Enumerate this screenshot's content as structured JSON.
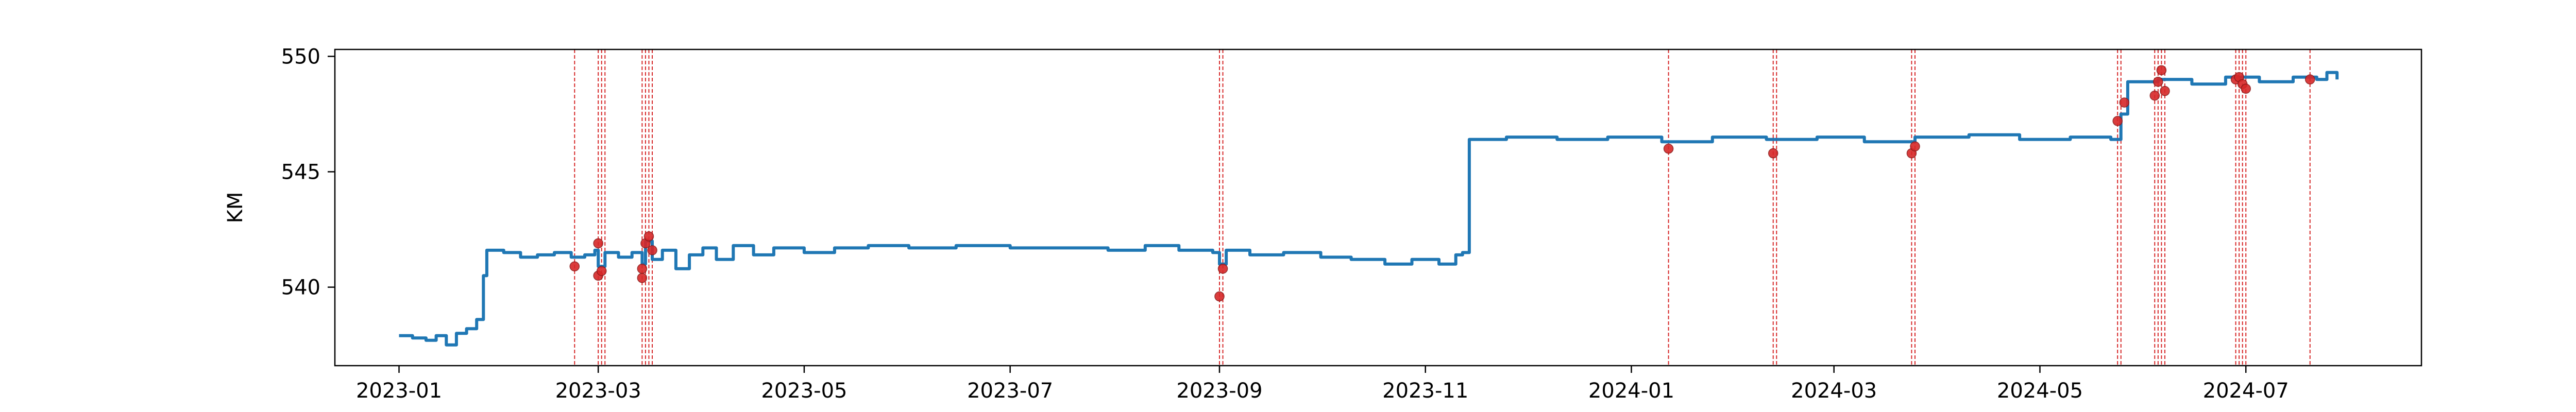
{
  "chart_data": {
    "type": "line",
    "title": "",
    "xlabel": "",
    "ylabel": "KM",
    "xlim": [
      "2022-12-13",
      "2024-08-22"
    ],
    "ylim": [
      536.6,
      550.3
    ],
    "x_ticks": [
      "2023-01-01",
      "2023-03-01",
      "2023-05-01",
      "2023-07-01",
      "2023-09-01",
      "2023-11-01",
      "2024-01-01",
      "2024-03-01",
      "2024-05-01",
      "2024-07-01"
    ],
    "x_tick_labels": [
      "2023-01",
      "2023-03",
      "2023-05",
      "2023-07",
      "2023-09",
      "2023-11",
      "2024-01",
      "2024-03",
      "2024-05",
      "2024-07"
    ],
    "y_ticks": [
      540,
      545,
      550
    ],
    "grid": false,
    "colors": {
      "line": "#1f77b4",
      "marker": "#d62728",
      "vline": "#d62728",
      "axes": "#000000"
    },
    "series": [
      {
        "points": [
          [
            "2023-01-01",
            537.9
          ],
          [
            "2023-01-05",
            537.8
          ],
          [
            "2023-01-09",
            537.7
          ],
          [
            "2023-01-12",
            537.9
          ],
          [
            "2023-01-15",
            537.5
          ],
          [
            "2023-01-18",
            538.0
          ],
          [
            "2023-01-21",
            538.2
          ],
          [
            "2023-01-24",
            538.6
          ],
          [
            "2023-01-26",
            540.5
          ],
          [
            "2023-01-27",
            541.6
          ],
          [
            "2023-02-01",
            541.5
          ],
          [
            "2023-02-06",
            541.3
          ],
          [
            "2023-02-11",
            541.4
          ],
          [
            "2023-02-16",
            541.5
          ],
          [
            "2023-02-21",
            541.3
          ],
          [
            "2023-02-25",
            541.4
          ],
          [
            "2023-02-28",
            541.6
          ],
          [
            "2023-03-01",
            540.9
          ],
          [
            "2023-03-03",
            541.5
          ],
          [
            "2023-03-07",
            541.3
          ],
          [
            "2023-03-11",
            541.5
          ],
          [
            "2023-03-14",
            541.0
          ],
          [
            "2023-03-15",
            542.0
          ],
          [
            "2023-03-17",
            541.2
          ],
          [
            "2023-03-20",
            541.6
          ],
          [
            "2023-03-24",
            540.8
          ],
          [
            "2023-03-28",
            541.4
          ],
          [
            "2023-04-01",
            541.7
          ],
          [
            "2023-04-05",
            541.2
          ],
          [
            "2023-04-10",
            541.8
          ],
          [
            "2023-04-16",
            541.4
          ],
          [
            "2023-04-22",
            541.7
          ],
          [
            "2023-05-01",
            541.5
          ],
          [
            "2023-05-10",
            541.7
          ],
          [
            "2023-05-20",
            541.8
          ],
          [
            "2023-06-01",
            541.7
          ],
          [
            "2023-06-15",
            541.8
          ],
          [
            "2023-07-01",
            541.7
          ],
          [
            "2023-07-15",
            541.7
          ],
          [
            "2023-07-30",
            541.6
          ],
          [
            "2023-08-10",
            541.8
          ],
          [
            "2023-08-20",
            541.6
          ],
          [
            "2023-08-30",
            541.5
          ],
          [
            "2023-09-01",
            541.0
          ],
          [
            "2023-09-03",
            541.6
          ],
          [
            "2023-09-10",
            541.4
          ],
          [
            "2023-09-20",
            541.5
          ],
          [
            "2023-10-01",
            541.3
          ],
          [
            "2023-10-10",
            541.2
          ],
          [
            "2023-10-20",
            541.0
          ],
          [
            "2023-10-28",
            541.2
          ],
          [
            "2023-11-05",
            541.0
          ],
          [
            "2023-11-10",
            541.4
          ],
          [
            "2023-11-12",
            541.5
          ],
          [
            "2023-11-14",
            546.4
          ],
          [
            "2023-11-25",
            546.5
          ],
          [
            "2023-12-10",
            546.4
          ],
          [
            "2023-12-25",
            546.5
          ],
          [
            "2024-01-10",
            546.3
          ],
          [
            "2024-01-25",
            546.5
          ],
          [
            "2024-02-10",
            546.4
          ],
          [
            "2024-02-25",
            546.5
          ],
          [
            "2024-03-10",
            546.3
          ],
          [
            "2024-03-25",
            546.5
          ],
          [
            "2024-04-10",
            546.6
          ],
          [
            "2024-04-25",
            546.4
          ],
          [
            "2024-05-10",
            546.5
          ],
          [
            "2024-05-22",
            546.4
          ],
          [
            "2024-05-25",
            547.5
          ],
          [
            "2024-05-27",
            548.9
          ],
          [
            "2024-06-05",
            549.0
          ],
          [
            "2024-06-15",
            548.8
          ],
          [
            "2024-06-25",
            549.1
          ],
          [
            "2024-07-05",
            548.9
          ],
          [
            "2024-07-15",
            549.1
          ],
          [
            "2024-07-22",
            549.0
          ],
          [
            "2024-07-25",
            549.3
          ],
          [
            "2024-07-28",
            549.0
          ]
        ]
      }
    ],
    "markers": [
      [
        "2023-02-22",
        540.9
      ],
      [
        "2023-03-01",
        541.9
      ],
      [
        "2023-03-01",
        540.5
      ],
      [
        "2023-03-02",
        540.7
      ],
      [
        "2023-03-14",
        540.8
      ],
      [
        "2023-03-14",
        540.4
      ],
      [
        "2023-03-15",
        541.9
      ],
      [
        "2023-03-16",
        542.2
      ],
      [
        "2023-03-17",
        541.6
      ],
      [
        "2023-09-01",
        539.6
      ],
      [
        "2023-09-02",
        540.8
      ],
      [
        "2024-01-12",
        546.0
      ],
      [
        "2024-02-12",
        545.8
      ],
      [
        "2024-03-24",
        545.8
      ],
      [
        "2024-03-25",
        546.1
      ],
      [
        "2024-05-24",
        547.2
      ],
      [
        "2024-05-26",
        548.0
      ],
      [
        "2024-06-04",
        548.3
      ],
      [
        "2024-06-05",
        548.9
      ],
      [
        "2024-06-06",
        549.4
      ],
      [
        "2024-06-07",
        548.5
      ],
      [
        "2024-06-28",
        549.0
      ],
      [
        "2024-06-29",
        549.1
      ],
      [
        "2024-06-30",
        548.8
      ],
      [
        "2024-07-01",
        548.6
      ],
      [
        "2024-07-20",
        549.0
      ]
    ],
    "vlines": [
      "2023-02-22",
      "2023-03-01",
      "2023-03-02",
      "2023-03-03",
      "2023-03-14",
      "2023-03-15",
      "2023-03-16",
      "2023-03-17",
      "2023-09-01",
      "2023-09-02",
      "2024-01-12",
      "2024-02-12",
      "2024-02-13",
      "2024-03-24",
      "2024-03-25",
      "2024-05-24",
      "2024-05-25",
      "2024-06-04",
      "2024-06-05",
      "2024-06-06",
      "2024-06-07",
      "2024-06-28",
      "2024-06-29",
      "2024-06-30",
      "2024-07-01",
      "2024-07-20"
    ]
  }
}
